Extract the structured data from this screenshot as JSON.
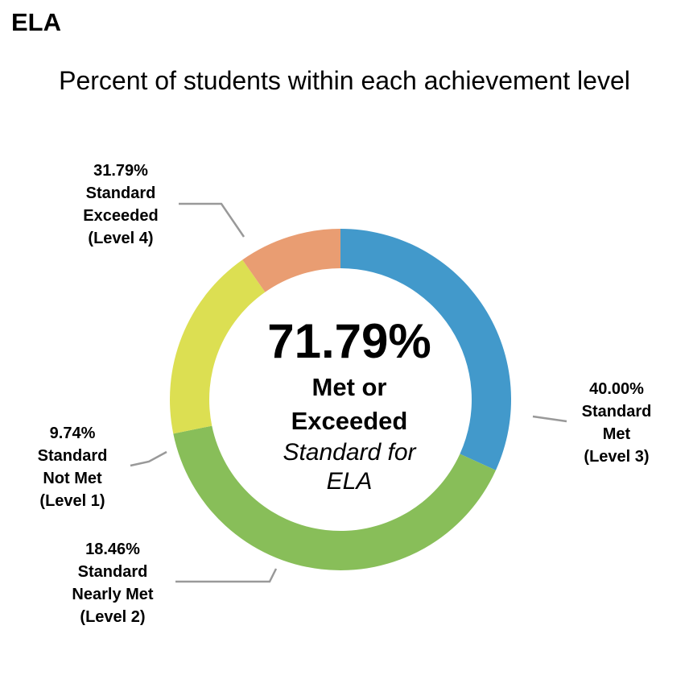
{
  "heading": "ELA",
  "chart_data": {
    "type": "pie",
    "title": "Percent of students within each achievement level",
    "center": {
      "value": "71.79%",
      "line1": "Met or",
      "line2": "Exceeded",
      "line3": "Standard for",
      "line4": "ELA"
    },
    "slices": [
      {
        "key": "level4",
        "value": 31.79,
        "pct": "31.79%",
        "label": [
          "Standard",
          "Exceeded",
          "(Level 4)"
        ],
        "color": "#4299CB"
      },
      {
        "key": "level3",
        "value": 40.0,
        "pct": "40.00%",
        "label": [
          "Standard",
          "Met",
          "(Level 3)"
        ],
        "color": "#88BE59"
      },
      {
        "key": "level2",
        "value": 18.46,
        "pct": "18.46%",
        "label": [
          "Standard",
          "Nearly Met",
          "(Level 2)"
        ],
        "color": "#DCDF52"
      },
      {
        "key": "level1",
        "value": 9.74,
        "pct": "9.74%",
        "label": [
          "Standard",
          "Not Met",
          "(Level 1)"
        ],
        "color": "#E99D72"
      }
    ]
  }
}
